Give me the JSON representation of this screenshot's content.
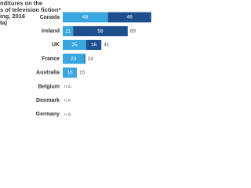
{
  "chart_data": {
    "type": "stacked-bar-horizontal",
    "title_lines": [
      "nditures on the",
      "s of television fiction*",
      "ing, 2016",
      "ta)"
    ],
    "categories": [
      "Canada",
      "Ireland",
      "UK",
      "France",
      "Australia",
      "Belgium",
      "Denmark",
      "Germany"
    ],
    "series": [
      {
        "color": "#3aa6df",
        "values": [
          48,
          11,
          25,
          23,
          15,
          null,
          null,
          null
        ],
        "value_labels": [
          null,
          null,
          null,
          null,
          null,
          "n.d.",
          "n.d.",
          "n.d."
        ]
      },
      {
        "color": "#1d4f8f",
        "values": [
          46,
          58,
          16,
          1,
          0,
          null,
          null,
          null
        ]
      }
    ],
    "totals": [
      null,
      69,
      41,
      24,
      15,
      null,
      null,
      null
    ],
    "xlim": [
      0,
      100
    ]
  }
}
